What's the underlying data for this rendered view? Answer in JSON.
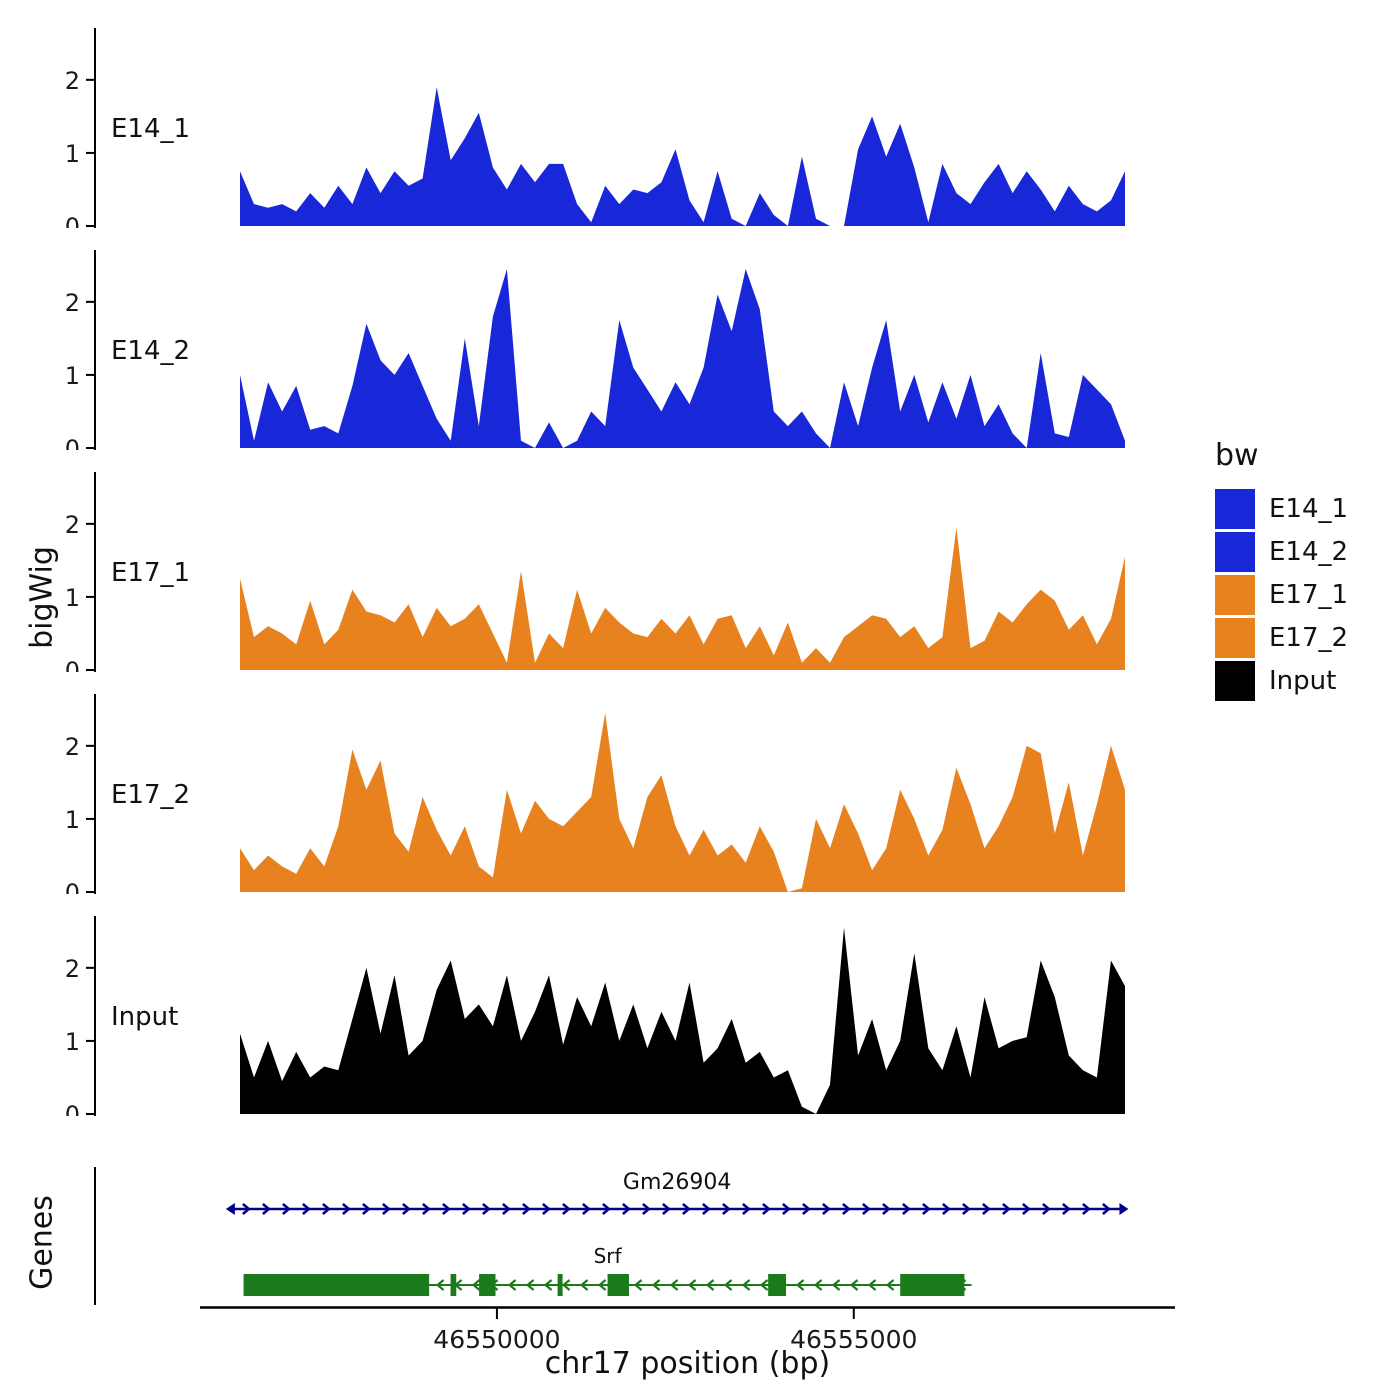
{
  "labels": {
    "y_tracks": "bigWig",
    "y_genes": "Genes",
    "x_title": "chr17 position (bp)"
  },
  "legend": {
    "title": "bw",
    "entries": [
      {
        "label": "E14_1",
        "color": "#1828D8"
      },
      {
        "label": "E14_2",
        "color": "#1828D8"
      },
      {
        "label": "E17_1",
        "color": "#E8821F"
      },
      {
        "label": "E17_2",
        "color": "#E8821F"
      },
      {
        "label": "Input",
        "color": "#000000"
      }
    ]
  },
  "chart_data": {
    "type": "area",
    "title": "",
    "xlabel": "chr17 position (bp)",
    "ylabel": "bigWig",
    "x_domain_bp": [
      46546400,
      46558800
    ],
    "x_ticks": [
      {
        "value": 46550000,
        "label": "46550000"
      },
      {
        "value": 46555000,
        "label": "46555000"
      }
    ],
    "y_ticks": [
      0,
      1,
      2
    ],
    "y_max": 2.6,
    "tracks": [
      {
        "label": "E14_1",
        "color": "#1828D8",
        "values": [
          0.75,
          0.3,
          0.25,
          0.3,
          0.2,
          0.45,
          0.25,
          0.55,
          0.3,
          0.8,
          0.45,
          0.75,
          0.55,
          0.65,
          1.9,
          0.9,
          1.2,
          1.55,
          0.8,
          0.5,
          0.85,
          0.6,
          0.85,
          0.85,
          0.3,
          0.05,
          0.55,
          0.3,
          0.5,
          0.45,
          0.6,
          1.05,
          0.35,
          0.05,
          0.75,
          0.1,
          0,
          0.45,
          0.15,
          0,
          0.95,
          0.1,
          0,
          0,
          1.05,
          1.5,
          0.95,
          1.4,
          0.8,
          0.05,
          0.85,
          0.45,
          0.3,
          0.6,
          0.85,
          0.45,
          0.75,
          0.5,
          0.2,
          0.55,
          0.3,
          0.2,
          0.35,
          0.75
        ]
      },
      {
        "label": "E14_2",
        "color": "#1828D8",
        "values": [
          1.0,
          0.1,
          0.9,
          0.5,
          0.85,
          0.25,
          0.3,
          0.2,
          0.85,
          1.7,
          1.2,
          1.0,
          1.3,
          0.85,
          0.4,
          0.1,
          1.5,
          0.3,
          1.8,
          2.45,
          0.1,
          0,
          0.35,
          0,
          0.1,
          0.5,
          0.3,
          1.75,
          1.1,
          0.8,
          0.5,
          0.9,
          0.6,
          1.1,
          2.1,
          1.6,
          2.45,
          1.9,
          0.5,
          0.3,
          0.5,
          0.2,
          0,
          0.9,
          0.3,
          1.1,
          1.75,
          0.5,
          1.0,
          0.35,
          0.9,
          0.4,
          1.0,
          0.3,
          0.6,
          0.2,
          0,
          1.3,
          0.2,
          0.15,
          1.0,
          0.8,
          0.6,
          0.1
        ]
      },
      {
        "label": "E17_1",
        "color": "#E8821F",
        "values": [
          1.25,
          0.45,
          0.6,
          0.5,
          0.35,
          0.95,
          0.35,
          0.55,
          1.1,
          0.8,
          0.75,
          0.65,
          0.9,
          0.45,
          0.85,
          0.6,
          0.7,
          0.9,
          0.5,
          0.1,
          1.35,
          0.1,
          0.5,
          0.3,
          1.1,
          0.5,
          0.85,
          0.65,
          0.5,
          0.45,
          0.7,
          0.5,
          0.75,
          0.35,
          0.7,
          0.75,
          0.3,
          0.6,
          0.2,
          0.65,
          0.1,
          0.3,
          0.1,
          0.45,
          0.6,
          0.75,
          0.7,
          0.45,
          0.6,
          0.3,
          0.45,
          1.95,
          0.3,
          0.4,
          0.8,
          0.65,
          0.9,
          1.1,
          0.95,
          0.55,
          0.75,
          0.35,
          0.7,
          1.55
        ]
      },
      {
        "label": "E17_2",
        "color": "#E8821F",
        "values": [
          0.6,
          0.3,
          0.5,
          0.35,
          0.25,
          0.6,
          0.35,
          0.9,
          1.95,
          1.4,
          1.8,
          0.8,
          0.55,
          1.3,
          0.85,
          0.5,
          0.9,
          0.35,
          0.2,
          1.4,
          0.8,
          1.25,
          1.0,
          0.9,
          1.1,
          1.3,
          2.45,
          1.0,
          0.6,
          1.3,
          1.6,
          0.9,
          0.5,
          0.85,
          0.5,
          0.65,
          0.4,
          0.9,
          0.55,
          0,
          0.05,
          1.0,
          0.6,
          1.2,
          0.8,
          0.3,
          0.6,
          1.4,
          1.0,
          0.5,
          0.85,
          1.7,
          1.2,
          0.6,
          0.9,
          1.3,
          2.0,
          1.9,
          0.8,
          1.5,
          0.5,
          1.2,
          2.0,
          1.4
        ]
      },
      {
        "label": "Input",
        "color": "#000000",
        "values": [
          1.1,
          0.5,
          1.0,
          0.45,
          0.85,
          0.5,
          0.65,
          0.6,
          1.3,
          2.0,
          1.1,
          1.9,
          0.8,
          1.0,
          1.7,
          2.1,
          1.3,
          1.5,
          1.2,
          1.9,
          1.0,
          1.4,
          1.9,
          0.95,
          1.6,
          1.2,
          1.8,
          1.0,
          1.5,
          0.9,
          1.4,
          1.0,
          1.8,
          0.7,
          0.9,
          1.3,
          0.7,
          0.85,
          0.5,
          0.6,
          0.1,
          0,
          0.4,
          2.55,
          0.8,
          1.3,
          0.6,
          1.0,
          2.2,
          0.9,
          0.6,
          1.2,
          0.5,
          1.6,
          0.9,
          1.0,
          1.05,
          2.1,
          1.6,
          0.8,
          0.6,
          0.5,
          2.1,
          1.75
        ]
      }
    ],
    "genes_panel": {
      "ylabel": "Genes",
      "genes": [
        {
          "name": "Gm26904",
          "strand": "+",
          "color": "#00008B",
          "start": 46546300,
          "end": 46558750,
          "type": "transcript-line"
        },
        {
          "name": "Srf",
          "strand": "-",
          "color": "#1B7A1B",
          "start": 46546450,
          "end": 46556650,
          "type": "gene-model",
          "exons": [
            [
              46546450,
              46549050
            ],
            [
              46549350,
              46549430
            ],
            [
              46549750,
              46549980
            ],
            [
              46550850,
              46550920
            ],
            [
              46551550,
              46551850
            ],
            [
              46553800,
              46554050
            ],
            [
              46555650,
              46556550
            ]
          ]
        }
      ]
    }
  }
}
